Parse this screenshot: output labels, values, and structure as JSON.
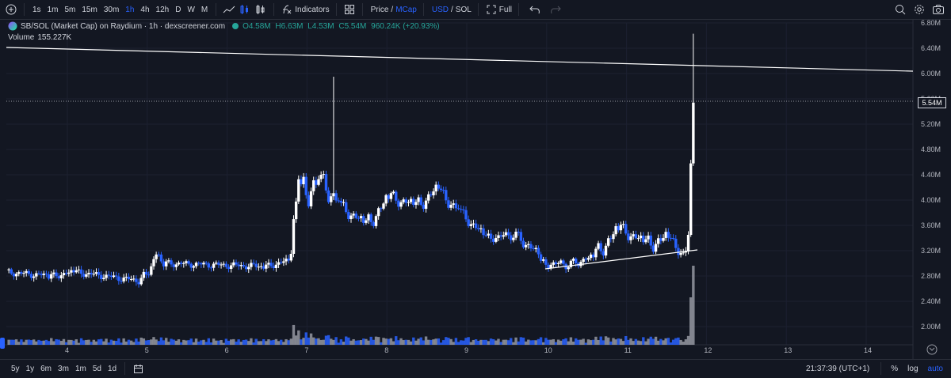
{
  "toolbar": {
    "intervals": [
      "1s",
      "1m",
      "5m",
      "15m",
      "30m",
      "1h",
      "4h",
      "12h",
      "D",
      "W",
      "M"
    ],
    "active_interval": "1h",
    "indicators_label": "Indicators",
    "price_label": "Price",
    "mcap_label": "MCap",
    "slash": "/",
    "usd_label": "USD",
    "sol_label": "SOL",
    "full_label": "Full"
  },
  "legend": {
    "symbol": "SB/SOL (Market Cap) on Raydium · 1h · dexscreener.com",
    "open": "O4.58M",
    "high": "H6.63M",
    "low": "L4.53M",
    "close": "C5.54M",
    "change": "960.24K (+20.93%)",
    "volume_label": "Volume",
    "volume_value": "155.227K"
  },
  "chart_data": {
    "type": "candlestick",
    "xlabels": [
      "4",
      "5",
      "6",
      "7",
      "8",
      "9",
      "10",
      "11",
      "12",
      "13",
      "14"
    ],
    "ylabels": [
      "6.80M",
      "6.40M",
      "6.00M",
      "5.60M",
      "5.20M",
      "4.80M",
      "4.40M",
      "4.00M",
      "3.60M",
      "3.20M",
      "2.80M",
      "2.40M",
      "2.00M"
    ],
    "last_price_label": "5.54M",
    "colors": {
      "up": "#ffffff",
      "down": "#2962ff",
      "volume_up": "#9598a1",
      "volume_down": "#2962ff",
      "grid": "#1c2030"
    }
  },
  "bottom": {
    "ranges": [
      "5y",
      "1y",
      "6m",
      "3m",
      "1m",
      "5d",
      "1d"
    ],
    "time": "21:37:39 (UTC+1)",
    "percent_label": "%",
    "log_label": "log",
    "auto_label": "auto"
  },
  "icons": [
    "plus-circle-icon",
    "line-chart-icon",
    "candles-icon",
    "bars-icon",
    "indicators-icon",
    "layout-icon",
    "undo-icon",
    "redo-icon",
    "magnifier-icon",
    "gear-icon",
    "camera-icon",
    "calendar-icon",
    "goto-icon"
  ]
}
